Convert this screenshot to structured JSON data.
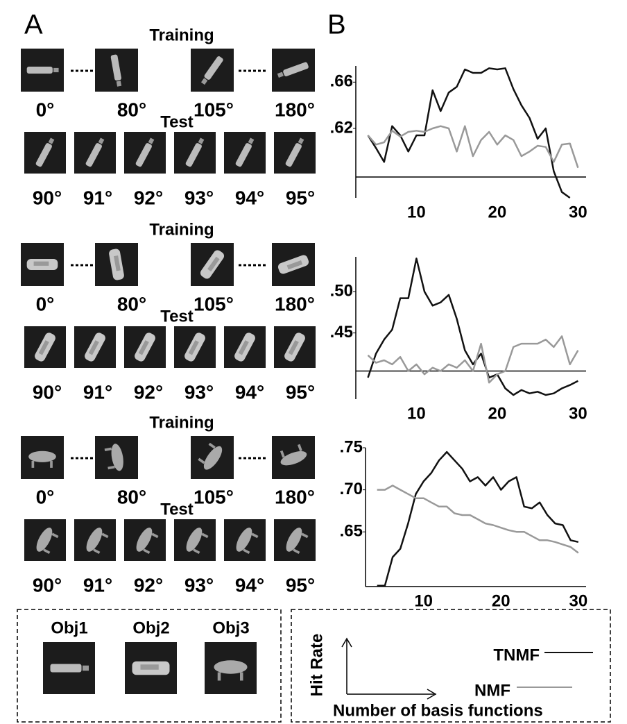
{
  "panel_a": {
    "label": "A",
    "groups": [
      {
        "training_title": "Training",
        "training_angles": [
          "0°",
          "80°",
          "105°",
          "180°"
        ],
        "test_title": "Test",
        "test_angles": [
          "90°",
          "91°",
          "92°",
          "93°",
          "94°",
          "95°"
        ]
      },
      {
        "training_title": "Training",
        "training_angles": [
          "0°",
          "80°",
          "105°",
          "180°"
        ],
        "test_title": "Test",
        "test_angles": [
          "90°",
          "91°",
          "92°",
          "93°",
          "94°",
          "95°"
        ]
      },
      {
        "training_title": "Training",
        "training_angles": [
          "0°",
          "80°",
          "105°",
          "180°"
        ],
        "test_title": "Test",
        "test_angles": [
          "90°",
          "91°",
          "92°",
          "93°",
          "94°",
          "95°"
        ]
      }
    ],
    "objects": [
      "Obj1",
      "Obj2",
      "Obj3"
    ]
  },
  "panel_b": {
    "label": "B"
  },
  "legend": {
    "y_label": "Hit Rate",
    "x_label": "Number of basis functions"
  },
  "chart_data": [
    {
      "type": "line",
      "xlim": [
        2.5,
        31
      ],
      "ylim": [
        0.56,
        0.674
      ],
      "baseline": 0.578,
      "xticks": [
        10,
        20,
        30
      ],
      "yticks": [
        {
          "value": 0.62,
          "label": ".62"
        },
        {
          "value": 0.66,
          "label": ".66"
        }
      ],
      "x": [
        4,
        5,
        6,
        7,
        8,
        9,
        10,
        11,
        12,
        13,
        14,
        15,
        16,
        17,
        18,
        19,
        20,
        21,
        22,
        23,
        24,
        25,
        26,
        27,
        28,
        29,
        30
      ],
      "series": [
        {
          "name": "TNMF",
          "color": "#111111",
          "values": [
            0.614,
            0.603,
            0.591,
            0.622,
            0.614,
            0.6,
            0.614,
            0.614,
            0.653,
            0.635,
            0.651,
            0.656,
            0.671,
            0.668,
            0.668,
            0.672,
            0.671,
            0.672,
            0.654,
            0.64,
            0.629,
            0.611,
            0.62,
            0.583,
            0.565,
            0.56,
            null
          ]
        },
        {
          "name": "NMF",
          "color": "#999999",
          "values": [
            0.614,
            0.606,
            0.608,
            0.618,
            0.613,
            0.617,
            0.618,
            0.617,
            0.62,
            0.622,
            0.62,
            0.6,
            0.622,
            0.596,
            0.61,
            0.617,
            0.606,
            0.614,
            0.61,
            0.596,
            0.6,
            0.605,
            0.604,
            0.591,
            0.606,
            0.607,
            0.586
          ]
        }
      ]
    },
    {
      "type": "line",
      "xlim": [
        2.5,
        31
      ],
      "ylim": [
        0.37,
        0.542
      ],
      "baseline": 0.404,
      "xticks": [
        10,
        20,
        30
      ],
      "yticks": [
        {
          "value": 0.45,
          "label": ".45"
        },
        {
          "value": 0.5,
          "label": ".50"
        }
      ],
      "x": [
        4,
        5,
        6,
        7,
        8,
        9,
        10,
        11,
        12,
        13,
        14,
        15,
        16,
        17,
        18,
        19,
        20,
        21,
        22,
        23,
        24,
        25,
        26,
        27,
        28,
        29,
        30
      ],
      "series": [
        {
          "color": "#111111",
          "values": [
            0.396,
            0.425,
            0.442,
            0.454,
            0.492,
            0.492,
            0.54,
            0.5,
            0.483,
            0.487,
            0.496,
            0.467,
            0.429,
            0.412,
            0.425,
            0.396,
            0.4,
            0.383,
            0.375,
            0.381,
            0.377,
            0.379,
            0.375,
            0.377,
            0.383,
            0.387,
            0.392
          ]
        },
        {
          "color": "#999999",
          "values": [
            0.423,
            0.414,
            0.417,
            0.412,
            0.421,
            0.404,
            0.412,
            0.4,
            0.408,
            0.404,
            0.412,
            0.408,
            0.417,
            0.404,
            0.437,
            0.39,
            0.4,
            0.404,
            0.433,
            0.437,
            0.437,
            0.437,
            0.442,
            0.433,
            0.446,
            0.412,
            0.429
          ]
        }
      ]
    },
    {
      "type": "line",
      "xlim": [
        2.5,
        31
      ],
      "ylim": [
        0.585,
        0.75
      ],
      "baseline": 0.585,
      "xticks": [
        10,
        20,
        30
      ],
      "yticks": [
        {
          "value": 0.65,
          "label": ".65"
        },
        {
          "value": 0.7,
          "label": ".70"
        },
        {
          "value": 0.75,
          "label": ".75"
        }
      ],
      "x": [
        4,
        5,
        6,
        7,
        8,
        9,
        10,
        11,
        12,
        13,
        14,
        15,
        16,
        17,
        18,
        19,
        20,
        21,
        22,
        23,
        24,
        25,
        26,
        27,
        28,
        29,
        30
      ],
      "series": [
        {
          "color": "#111111",
          "values": [
            0.586,
            0.586,
            0.62,
            0.63,
            0.66,
            0.695,
            0.71,
            0.72,
            0.735,
            0.745,
            0.735,
            0.725,
            0.71,
            0.715,
            0.705,
            0.715,
            0.7,
            0.71,
            0.715,
            0.68,
            0.678,
            0.685,
            0.67,
            0.66,
            0.658,
            0.64,
            0.638
          ]
        },
        {
          "color": "#999999",
          "values": [
            0.7,
            0.7,
            0.705,
            0.7,
            0.695,
            0.69,
            0.69,
            0.685,
            0.68,
            0.68,
            0.672,
            0.67,
            0.67,
            0.665,
            0.66,
            0.658,
            0.655,
            0.652,
            0.65,
            0.65,
            0.645,
            0.64,
            0.64,
            0.638,
            0.635,
            0.632,
            0.625
          ]
        }
      ]
    }
  ]
}
